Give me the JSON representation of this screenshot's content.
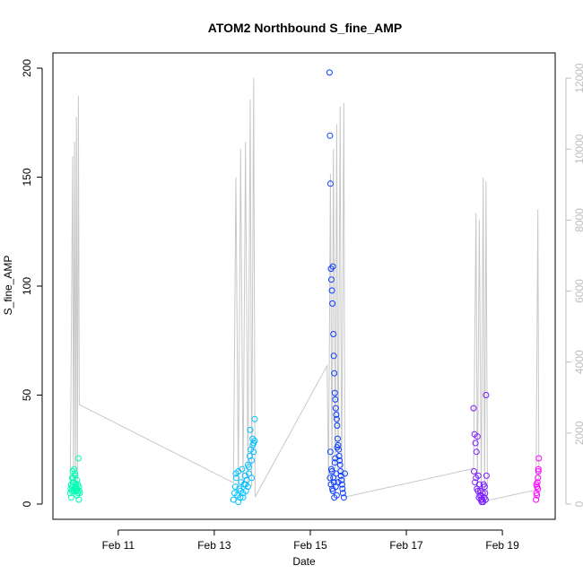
{
  "chart_data": {
    "type": "scatter",
    "title": "ATOM2 Northbound S_fine_AMP",
    "xlabel": "Date",
    "ylabel": "S_fine_AMP",
    "x_tick_labels": [
      "Feb 11",
      "Feb 13",
      "Feb 15",
      "Feb 17",
      "Feb 19"
    ],
    "x_tick_values": [
      11,
      13,
      15,
      17,
      19
    ],
    "xlim": [
      9.64,
      20.1
    ],
    "ylim": [
      -7,
      207
    ],
    "y_ticks": [
      0,
      50,
      100,
      150,
      200
    ],
    "y2_ticks": [
      0,
      2000,
      4000,
      6000,
      8000,
      10000,
      12000
    ],
    "y2lim": [
      -430,
      12710
    ],
    "y2_color": "#bdbdbd",
    "grid": false,
    "legend": "none",
    "secondary_line": {
      "color": "#c8c8c8",
      "points": [
        [
          10.0,
          500
        ],
        [
          10.05,
          9800
        ],
        [
          10.07,
          500
        ],
        [
          10.09,
          10200
        ],
        [
          10.11,
          500
        ],
        [
          10.13,
          10900
        ],
        [
          10.15,
          500
        ],
        [
          10.17,
          11500
        ],
        [
          10.19,
          2800
        ],
        [
          13.4,
          600
        ],
        [
          13.45,
          9200
        ],
        [
          13.5,
          500
        ],
        [
          13.55,
          10000
        ],
        [
          13.6,
          500
        ],
        [
          13.65,
          10200
        ],
        [
          13.7,
          600
        ],
        [
          13.75,
          11400
        ],
        [
          13.78,
          500
        ],
        [
          13.82,
          12000
        ],
        [
          13.85,
          200
        ],
        [
          15.35,
          3900
        ],
        [
          15.38,
          500
        ],
        [
          15.42,
          9300
        ],
        [
          15.45,
          500
        ],
        [
          15.48,
          10000
        ],
        [
          15.52,
          500
        ],
        [
          15.55,
          10700
        ],
        [
          15.58,
          500
        ],
        [
          15.62,
          11200
        ],
        [
          15.65,
          600
        ],
        [
          15.7,
          11300
        ],
        [
          15.72,
          200
        ],
        [
          18.4,
          1000
        ],
        [
          18.45,
          8200
        ],
        [
          18.48,
          300
        ],
        [
          18.52,
          8000
        ],
        [
          18.56,
          300
        ],
        [
          18.6,
          9200
        ],
        [
          18.63,
          300
        ],
        [
          18.66,
          9100
        ],
        [
          18.69,
          100
        ],
        [
          19.7,
          400
        ],
        [
          19.74,
          8300
        ],
        [
          19.76,
          700
        ]
      ]
    },
    "series": [
      {
        "color": "#00ffb3",
        "x": [
          10.0,
          10.01,
          10.02,
          10.03,
          10.04,
          10.05,
          10.06,
          10.07,
          10.08,
          10.09,
          10.1,
          10.11,
          10.12,
          10.13,
          10.14,
          10.15,
          10.16,
          10.17,
          10.18,
          10.19,
          10.02,
          10.06,
          10.1,
          10.14,
          10.18,
          10.04,
          10.08,
          10.12,
          10.16,
          10.2
        ],
        "y": [
          5,
          7,
          9,
          6,
          8,
          15,
          12,
          6,
          10,
          7,
          14,
          8,
          9,
          6,
          11,
          7,
          5,
          21,
          8,
          6,
          3,
          10,
          13,
          4,
          2,
          12,
          16,
          7,
          9,
          5
        ]
      },
      {
        "color": "#00bfff",
        "x": [
          13.4,
          13.42,
          13.44,
          13.46,
          13.48,
          13.5,
          13.52,
          13.54,
          13.56,
          13.58,
          13.6,
          13.62,
          13.64,
          13.66,
          13.68,
          13.7,
          13.72,
          13.74,
          13.76,
          13.78,
          13.8,
          13.82,
          13.84,
          13.5,
          13.6,
          13.7,
          13.75,
          13.8,
          13.45,
          13.55,
          13.65,
          13.72,
          13.78,
          13.82,
          13.84
        ],
        "y": [
          2,
          5,
          8,
          12,
          4,
          15,
          7,
          3,
          10,
          16,
          5,
          9,
          13,
          6,
          11,
          18,
          14,
          22,
          25,
          20,
          30,
          28,
          39,
          1,
          3,
          8,
          34,
          27,
          14,
          6,
          9,
          17,
          12,
          24,
          29
        ]
      },
      {
        "color": "#0d3fff",
        "x": [
          15.4,
          15.41,
          15.42,
          15.43,
          15.44,
          15.45,
          15.46,
          15.47,
          15.48,
          15.49,
          15.5,
          15.51,
          15.52,
          15.53,
          15.54,
          15.55,
          15.56,
          15.57,
          15.58,
          15.59,
          15.6,
          15.61,
          15.62,
          15.63,
          15.64,
          15.65,
          15.66,
          15.67,
          15.68,
          15.7,
          15.72,
          15.41,
          15.43,
          15.45,
          15.47,
          15.49,
          15.51,
          15.53,
          15.55,
          15.42,
          15.44,
          15.46,
          15.48,
          15.5,
          15.52,
          15.54,
          15.56,
          15.58
        ],
        "y": [
          198,
          169,
          147,
          108,
          103,
          98,
          92,
          109,
          78,
          68,
          60,
          51,
          48,
          44,
          41,
          39,
          36,
          30,
          27,
          25,
          22,
          20,
          18,
          15,
          13,
          11,
          9,
          7,
          5,
          3,
          14,
          12,
          9,
          15,
          6,
          10,
          19,
          8,
          4,
          24,
          16,
          7,
          12,
          3,
          21,
          14,
          26,
          10
        ]
      },
      {
        "color": "#7a1dff",
        "x": [
          18.4,
          18.42,
          18.44,
          18.46,
          18.48,
          18.5,
          18.52,
          18.54,
          18.56,
          18.58,
          18.6,
          18.62,
          18.64,
          18.66,
          18.43,
          18.47,
          18.51,
          18.55,
          18.59,
          18.63,
          18.41,
          18.45,
          18.49,
          18.53,
          18.57,
          18.61,
          18.65,
          18.67
        ],
        "y": [
          44,
          32,
          28,
          24,
          31,
          13,
          9,
          6,
          4,
          2,
          1,
          3,
          5,
          50,
          10,
          7,
          3,
          2,
          5,
          8,
          15,
          12,
          6,
          4,
          1,
          9,
          2,
          13
        ]
      },
      {
        "color": "#ff00ff",
        "x": [
          19.7,
          19.71,
          19.72,
          19.73,
          19.74,
          19.75,
          19.76,
          19.72,
          19.74,
          19.71,
          19.75
        ],
        "y": [
          2,
          5,
          8,
          10,
          12,
          16,
          21,
          4,
          7,
          9,
          15
        ]
      }
    ]
  }
}
